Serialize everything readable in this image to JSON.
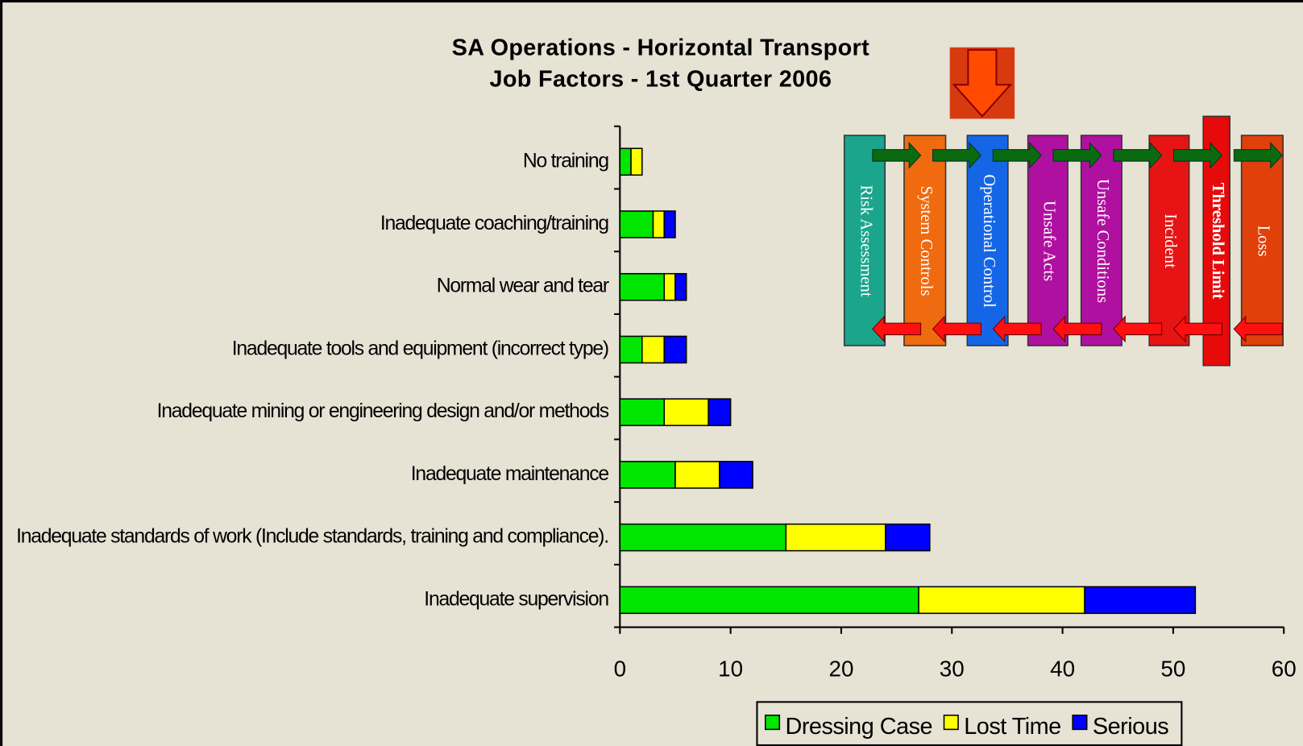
{
  "chart_data": {
    "type": "stacked-barh",
    "title": [
      "SA Operations - Horizontal Transport",
      "Job Factors - 1st Quarter 2006"
    ],
    "categories": [
      "No training",
      "Inadequate coaching/training",
      "Normal wear and tear",
      "Inadequate tools and equipment (incorrect type)",
      "Inadequate mining or engineering design and/or methods",
      "Inadequate maintenance",
      "Inadequate standards of work (Include standards, training and compliance).",
      "Inadequate supervision"
    ],
    "series": [
      {
        "name": "Dressing Case",
        "color": "#00e600",
        "values": [
          1,
          3,
          4,
          2,
          4,
          5,
          15,
          27
        ]
      },
      {
        "name": "Lost Time",
        "color": "#ffff00",
        "values": [
          1,
          1,
          1,
          2,
          4,
          4,
          9,
          15
        ]
      },
      {
        "name": "Serious",
        "color": "#0000ff",
        "values": [
          0,
          1,
          1,
          2,
          2,
          3,
          4,
          10
        ]
      }
    ],
    "xlim": [
      0,
      60
    ],
    "xticks": [
      0,
      10,
      20,
      30,
      40,
      50,
      60
    ],
    "legend": "bottom"
  },
  "diagram": {
    "labels": [
      "Risk Assessment",
      "System Controls",
      "Operational Control",
      "Unsafe Acts",
      "Unsafe Conditions",
      "Incident",
      "Threshold Limit",
      "Loss"
    ]
  }
}
